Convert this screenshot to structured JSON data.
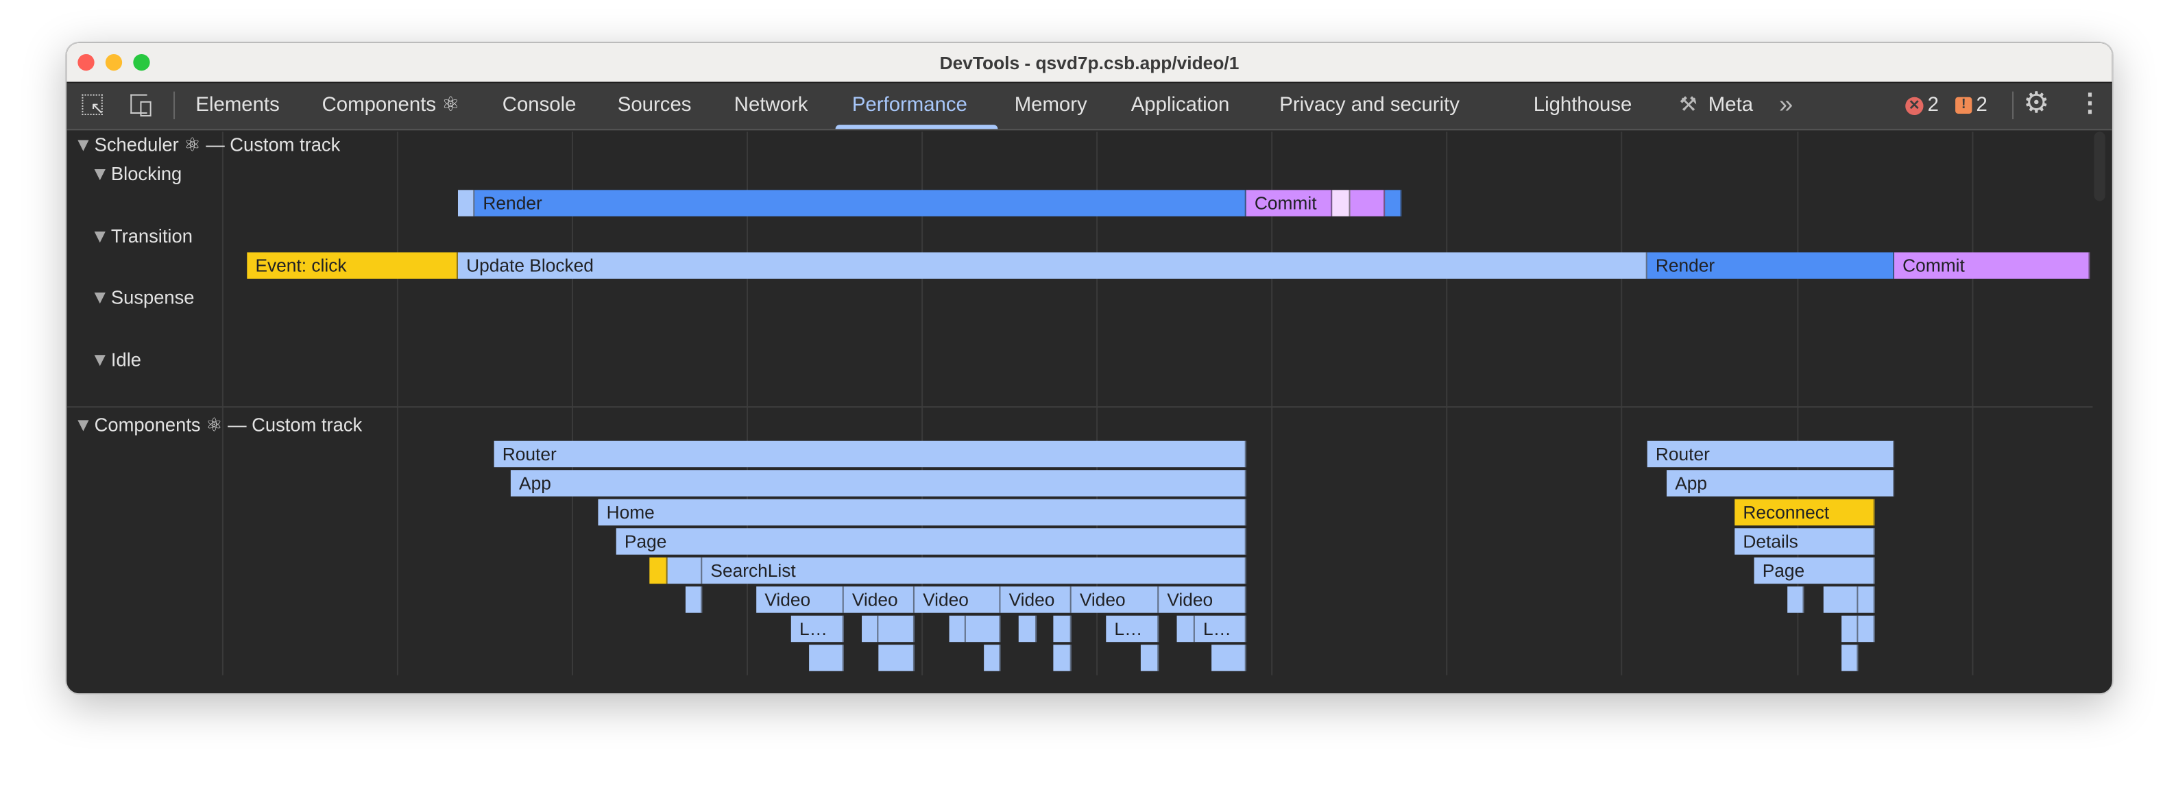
{
  "window": {
    "title": "DevTools - qsvd7p.csb.app/video/1"
  },
  "tabs": [
    {
      "label": "Elements"
    },
    {
      "label": "Components ⚛"
    },
    {
      "label": "Console"
    },
    {
      "label": "Sources"
    },
    {
      "label": "Network"
    },
    {
      "label": "Performance",
      "active": true
    },
    {
      "label": "Memory"
    },
    {
      "label": "Application"
    },
    {
      "label": "Privacy and security"
    },
    {
      "label": "Lighthouse"
    },
    {
      "label": "Meta"
    }
  ],
  "toolbar": {
    "more_tabs": "»",
    "error_count": "2",
    "warning_count": "2",
    "error_color": "#e46962",
    "warning_color": "#f28b54"
  },
  "scheduler": {
    "title": "Scheduler ⚛ — Custom track",
    "lanes": {
      "blocking": "Blocking",
      "transition": "Transition",
      "suspense": "Suspense",
      "idle": "Idle"
    },
    "blocking_bars": {
      "render": "Render",
      "commit": "Commit"
    },
    "transition_bars": {
      "event": "Event: click",
      "update_blocked": "Update Blocked",
      "render": "Render",
      "commit": "Commit"
    }
  },
  "components": {
    "title": "Components ⚛ — Custom track",
    "left": {
      "router": "Router",
      "app": "App",
      "home": "Home",
      "page": "Page",
      "searchlist": "SearchList",
      "video": "Video",
      "truncated": "L…"
    },
    "right": {
      "router": "Router",
      "app": "App",
      "reconnect": "Reconnect",
      "details": "Details",
      "page": "Page"
    }
  },
  "colors": {
    "render": "#4e8ef5",
    "light": "#a8c7fa",
    "commit": "#d08eff",
    "event": "#f9cc14",
    "accent": "#a8c7fa"
  }
}
